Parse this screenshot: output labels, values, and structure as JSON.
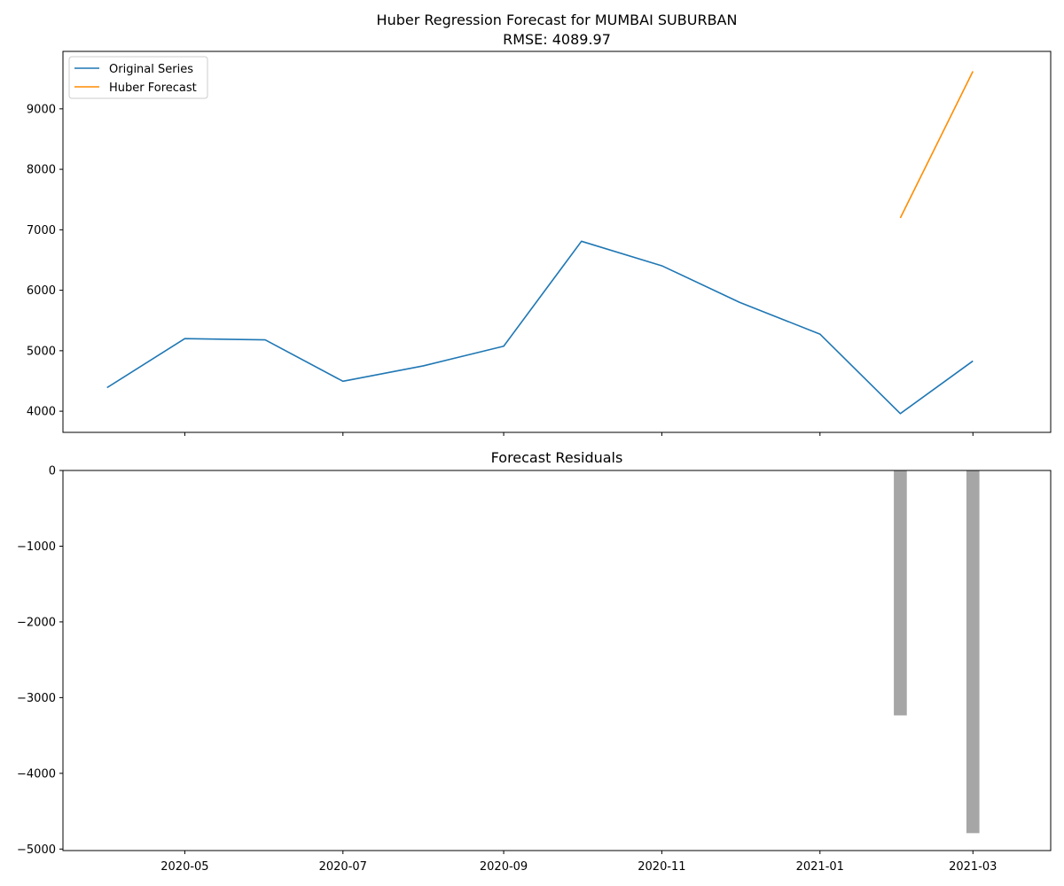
{
  "chart_data": [
    {
      "type": "line",
      "title": "Huber Regression Forecast for MUMBAI SUBURBAN",
      "subtitle": "RMSE: 4089.97",
      "xlabel": "",
      "ylabel": "",
      "ylim": [
        3650,
        9950
      ],
      "yticks": [
        4000,
        5000,
        6000,
        7000,
        8000,
        9000
      ],
      "xlim": [
        "2020-03-15",
        "2021-03-31"
      ],
      "xticks": [
        "2020-05-01",
        "2020-07-01",
        "2020-09-01",
        "2020-11-01",
        "2021-01-01",
        "2021-03-01"
      ],
      "xtick_labels_shown": false,
      "grid": false,
      "legend": "top-left",
      "series": [
        {
          "name": "Original Series",
          "color": "#1f77b4",
          "x": [
            "2020-04-01",
            "2020-05-01",
            "2020-06-01",
            "2020-07-01",
            "2020-08-01",
            "2020-09-01",
            "2020-10-01",
            "2020-11-01",
            "2020-12-01",
            "2021-01-01",
            "2021-02-01",
            "2021-03-01"
          ],
          "y": [
            4390,
            5200,
            5180,
            4495,
            4750,
            5075,
            6810,
            6405,
            5800,
            5275,
            3960,
            4830
          ]
        },
        {
          "name": "Huber Forecast",
          "color": "#ff8c00",
          "x": [
            "2021-02-01",
            "2021-03-01"
          ],
          "y": [
            7195,
            9620
          ]
        }
      ]
    },
    {
      "type": "bar",
      "title": "Forecast Residuals",
      "xlabel": "",
      "ylabel": "",
      "ylim": [
        -5020,
        0
      ],
      "yticks": [
        0,
        -1000,
        -2000,
        -3000,
        -4000,
        -5000
      ],
      "ytick_labels": [
        "0",
        "−1000",
        "−2000",
        "−3000",
        "−4000",
        "−5000"
      ],
      "xlim": [
        "2020-03-15",
        "2021-03-31"
      ],
      "xticks": [
        "2020-05-01",
        "2020-07-01",
        "2020-09-01",
        "2020-11-01",
        "2021-01-01",
        "2021-03-01"
      ],
      "xtick_labels": [
        "2020-05",
        "2020-07",
        "2020-09",
        "2020-11",
        "2021-01",
        "2021-03"
      ],
      "grid": false,
      "bar_color": "#a6a6a6",
      "x": [
        "2021-02-01",
        "2021-03-01"
      ],
      "values": [
        -3235,
        -4790
      ]
    }
  ]
}
